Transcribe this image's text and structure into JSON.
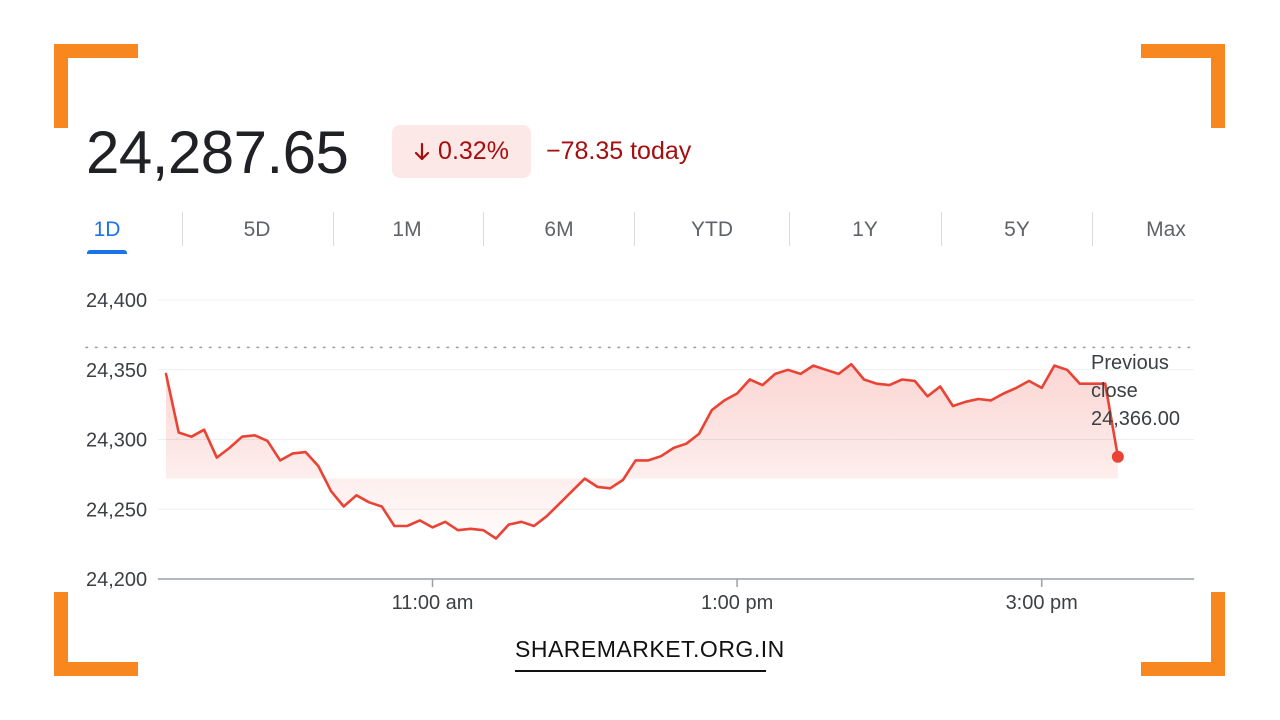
{
  "header": {
    "price": "24,287.65",
    "percent_change": "0.32%",
    "change_today": "−78.35 today",
    "arrow_icon": "arrow-down-icon",
    "colors": {
      "negative": "#a50e0e",
      "badge_bg": "#fce8e6",
      "line": "#ea4335",
      "accent": "#1a73e8",
      "frame": "#f7881f"
    }
  },
  "tabs": [
    {
      "label": "1D",
      "active": true
    },
    {
      "label": "5D",
      "active": false
    },
    {
      "label": "1M",
      "active": false
    },
    {
      "label": "6M",
      "active": false
    },
    {
      "label": "YTD",
      "active": false
    },
    {
      "label": "1Y",
      "active": false
    },
    {
      "label": "5Y",
      "active": false
    },
    {
      "label": "Max",
      "active": false
    }
  ],
  "chart_data": {
    "type": "line",
    "title": "",
    "xlabel": "",
    "ylabel": "",
    "ylim": [
      24200,
      24400
    ],
    "yticks": [
      24400,
      24350,
      24300,
      24250,
      24200
    ],
    "ytick_labels": [
      "24,400",
      "24,350",
      "24,300",
      "24,250",
      "24,200"
    ],
    "xlim": [
      "09:15",
      "16:00"
    ],
    "xtick_labels": [
      "11:00 am",
      "1:00 pm",
      "3:00 pm"
    ],
    "x_time_values": [
      "11:00",
      "13:00",
      "15:00"
    ],
    "grid": true,
    "reference_line": {
      "label_lines": [
        "Previous",
        "close",
        "24,366.00"
      ],
      "value": 24366.0,
      "style": "dotted"
    },
    "series": [
      {
        "x": [
          "09:15",
          "09:20",
          "09:25",
          "09:30",
          "09:35",
          "09:40",
          "09:45",
          "09:50",
          "09:55",
          "10:00",
          "10:05",
          "10:10",
          "10:15",
          "10:20",
          "10:25",
          "10:30",
          "10:35",
          "10:40",
          "10:45",
          "10:50",
          "10:55",
          "11:00",
          "11:05",
          "11:10",
          "11:15",
          "11:20",
          "11:25",
          "11:30",
          "11:35",
          "11:40",
          "11:45",
          "11:50",
          "11:55",
          "12:00",
          "12:05",
          "12:10",
          "12:15",
          "12:20",
          "12:25",
          "12:30",
          "12:35",
          "12:40",
          "12:45",
          "12:50",
          "12:55",
          "13:00",
          "13:05",
          "13:10",
          "13:15",
          "13:20",
          "13:25",
          "13:30",
          "13:35",
          "13:40",
          "13:45",
          "13:50",
          "13:55",
          "14:00",
          "14:05",
          "14:10",
          "14:15",
          "14:20",
          "14:25",
          "14:30",
          "14:35",
          "14:40",
          "14:45",
          "14:50",
          "14:55",
          "15:00",
          "15:05",
          "15:10",
          "15:15",
          "15:20",
          "15:25",
          "15:30"
        ],
        "values": [
          24347,
          24305,
          24302,
          24307,
          24287,
          24294,
          24302,
          24303,
          24299,
          24285,
          24290,
          24291,
          24281,
          24263,
          24252,
          24260,
          24255,
          24252,
          24238,
          24238,
          24242,
          24237,
          24241,
          24235,
          24236,
          24235,
          24229,
          24239,
          24241,
          24238,
          24245,
          24254,
          24263,
          24272,
          24266,
          24265,
          24271,
          24285,
          24285,
          24288,
          24294,
          24297,
          24304,
          24321,
          24328,
          24333,
          24343,
          24339,
          24347,
          24350,
          24347,
          24353,
          24350,
          24347,
          24354,
          24343,
          24340,
          24339,
          24343,
          24342,
          24331,
          24338,
          24324,
          24327,
          24329,
          24328,
          24333,
          24337,
          24342,
          24337,
          24353,
          24350,
          24340,
          24340,
          24340,
          24287.65
        ]
      }
    ]
  },
  "brand": "SHAREMARKET.ORG.IN"
}
